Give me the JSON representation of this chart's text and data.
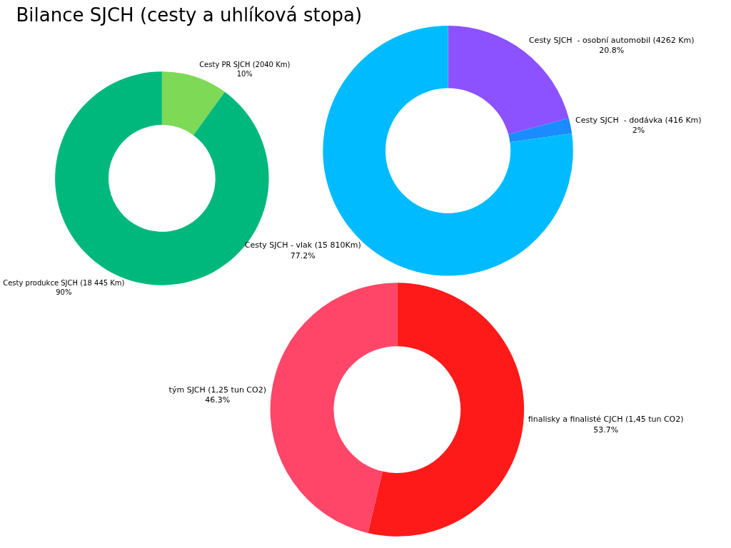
{
  "chart_data": [
    {
      "type": "donut",
      "title": "Bilance SJCH (cesty a uhlíková stopa)",
      "categories": [
        "Cesty PR SJCH (2040 Km)",
        "Cesty produkce SJCH (18 445 Km)"
      ],
      "values": [
        10,
        90
      ],
      "value_labels": [
        "10%",
        "90%"
      ],
      "colors": [
        "#7ed957",
        "#00b87c"
      ],
      "legend": false
    },
    {
      "type": "donut",
      "categories": [
        "Cesty SJCH  - osobní automobil (4262 Km)",
        "Cesty SJCH  - dodávka (416 Km)",
        "Cesty SJCH - vlak (15 810Km)"
      ],
      "values": [
        20.8,
        2,
        77.2
      ],
      "value_labels": [
        "20.8%",
        "2%",
        "77.2%"
      ],
      "colors": [
        "#8c52ff",
        "#1a8cff",
        "#00bbff"
      ],
      "legend": false
    },
    {
      "type": "donut",
      "categories": [
        "finalisky a finalisté CJCH (1,45 tun CO2)",
        "tým SJCH (1,25 tun CO2)"
      ],
      "values": [
        53.7,
        46.3
      ],
      "value_labels": [
        "53.7%",
        "46.3%"
      ],
      "colors": [
        "#ff1a1a",
        "#ff4668"
      ],
      "legend": false
    }
  ]
}
